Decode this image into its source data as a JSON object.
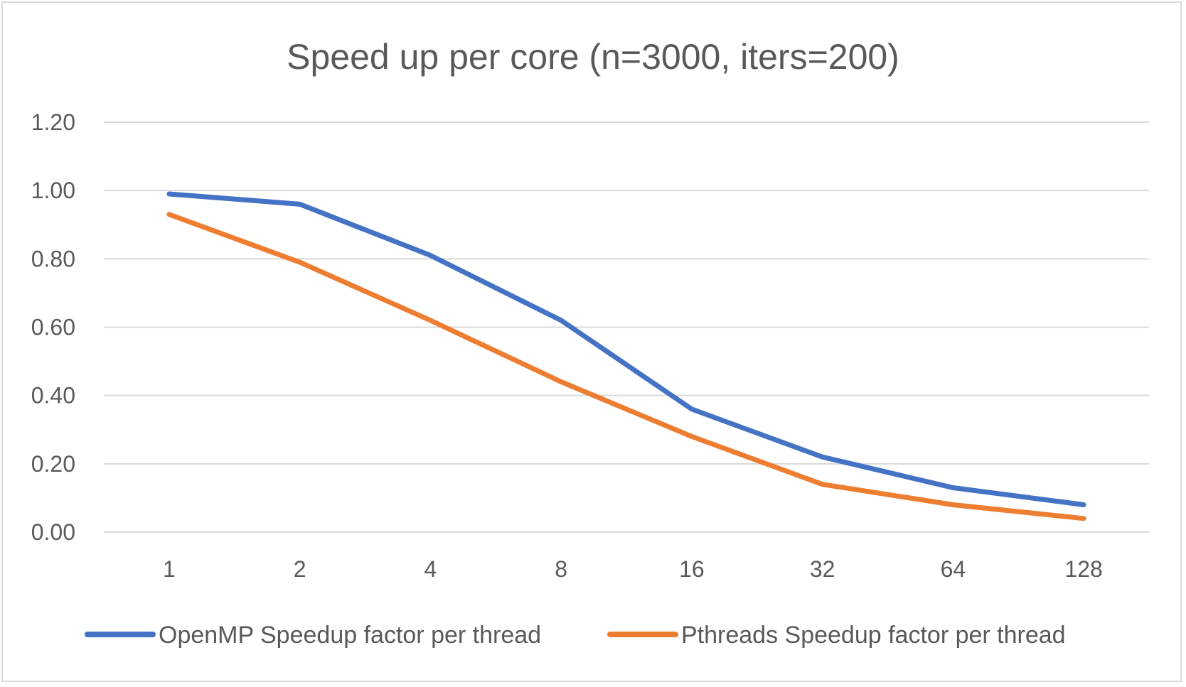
{
  "chart_data": {
    "type": "line",
    "title": "Speed up per core (n=3000, iters=200)",
    "xlabel": "",
    "ylabel": "",
    "categories": [
      "1",
      "2",
      "4",
      "8",
      "16",
      "32",
      "64",
      "128"
    ],
    "ylim": [
      0,
      1.2
    ],
    "yticks": [
      "0.00",
      "0.20",
      "0.40",
      "0.60",
      "0.80",
      "1.00",
      "1.20"
    ],
    "grid": true,
    "legend_position": "bottom",
    "series": [
      {
        "name": "OpenMP Speedup factor per thread",
        "color": "#4472C4",
        "values": [
          0.99,
          0.96,
          0.81,
          0.62,
          0.36,
          0.22,
          0.13,
          0.08
        ]
      },
      {
        "name": "Pthreads Speedup factor per thread",
        "color": "#ED7D31",
        "values": [
          0.93,
          0.79,
          0.62,
          0.44,
          0.28,
          0.14,
          0.08,
          0.04
        ]
      }
    ]
  }
}
